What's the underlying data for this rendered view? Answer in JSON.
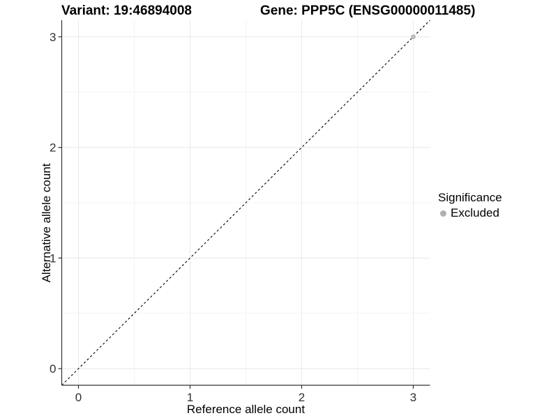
{
  "header": {
    "variant_title": "Variant: 19:46894008",
    "gene_title": "Gene: PPP5C (ENSG00000011485)"
  },
  "chart_data": {
    "type": "scatter",
    "xlabel": "Reference allele count",
    "ylabel": "Alternative allele count",
    "x_ticks": [
      0,
      1,
      2,
      3
    ],
    "y_ticks": [
      0,
      1,
      2,
      3
    ],
    "x_tick_labels": [
      "0",
      "1",
      "2",
      "3"
    ],
    "y_tick_labels": [
      "0",
      "1",
      "2",
      "3"
    ],
    "xlim": [
      -0.15,
      3.15
    ],
    "ylim": [
      -0.15,
      3.15
    ],
    "grid": "major+minor",
    "points": [
      {
        "x": 3,
        "y": 3,
        "group": "Excluded"
      }
    ],
    "reference_line": {
      "kind": "identity y=x",
      "style": "dashed",
      "color": "#000000"
    },
    "legend": {
      "title": "Significance",
      "position": "right",
      "items": [
        {
          "label": "Excluded",
          "color": "#b0b0b0"
        }
      ]
    },
    "colors": {
      "grid_major": "#e8e8e8",
      "grid_minor": "#f4f4f4",
      "axis": "#333333",
      "tick_text": "#303030",
      "point": "#bdbdbd",
      "background": "#ffffff"
    }
  }
}
